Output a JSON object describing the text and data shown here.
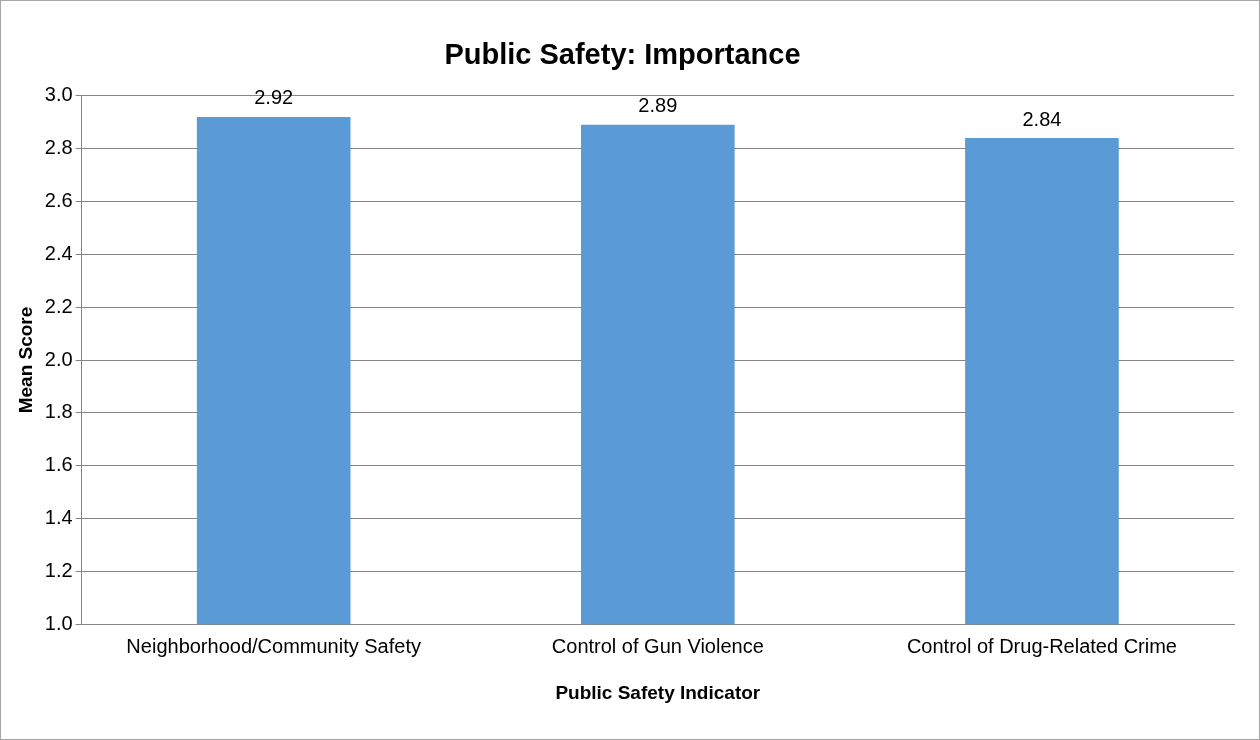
{
  "chart_data": {
    "type": "bar",
    "title": "Public Safety: Importance",
    "xlabel": "Public Safety Indicator",
    "ylabel": "Mean Score",
    "categories": [
      "Neighborhood/Community Safety",
      "Control of Gun Violence",
      "Control of Drug-Related Crime"
    ],
    "values": [
      2.92,
      2.89,
      2.84
    ],
    "color": "#5b9bd5",
    "ylim": [
      1.0,
      3.0
    ],
    "yticks": [
      {
        "value": 1.0,
        "label": "1.0"
      },
      {
        "value": 1.2,
        "label": "1.2"
      },
      {
        "value": 1.4,
        "label": "1.4"
      },
      {
        "value": 1.6,
        "label": "1.6"
      },
      {
        "value": 1.8,
        "label": "1.8"
      },
      {
        "value": 2.0,
        "label": "2.0"
      },
      {
        "value": 2.2,
        "label": "2.2"
      },
      {
        "value": 2.4,
        "label": "2.4"
      },
      {
        "value": 2.6,
        "label": "2.6"
      },
      {
        "value": 2.8,
        "label": "2.8"
      },
      {
        "value": 3.0,
        "label": "3.0"
      }
    ],
    "grid": "y",
    "data_labels": true
  }
}
